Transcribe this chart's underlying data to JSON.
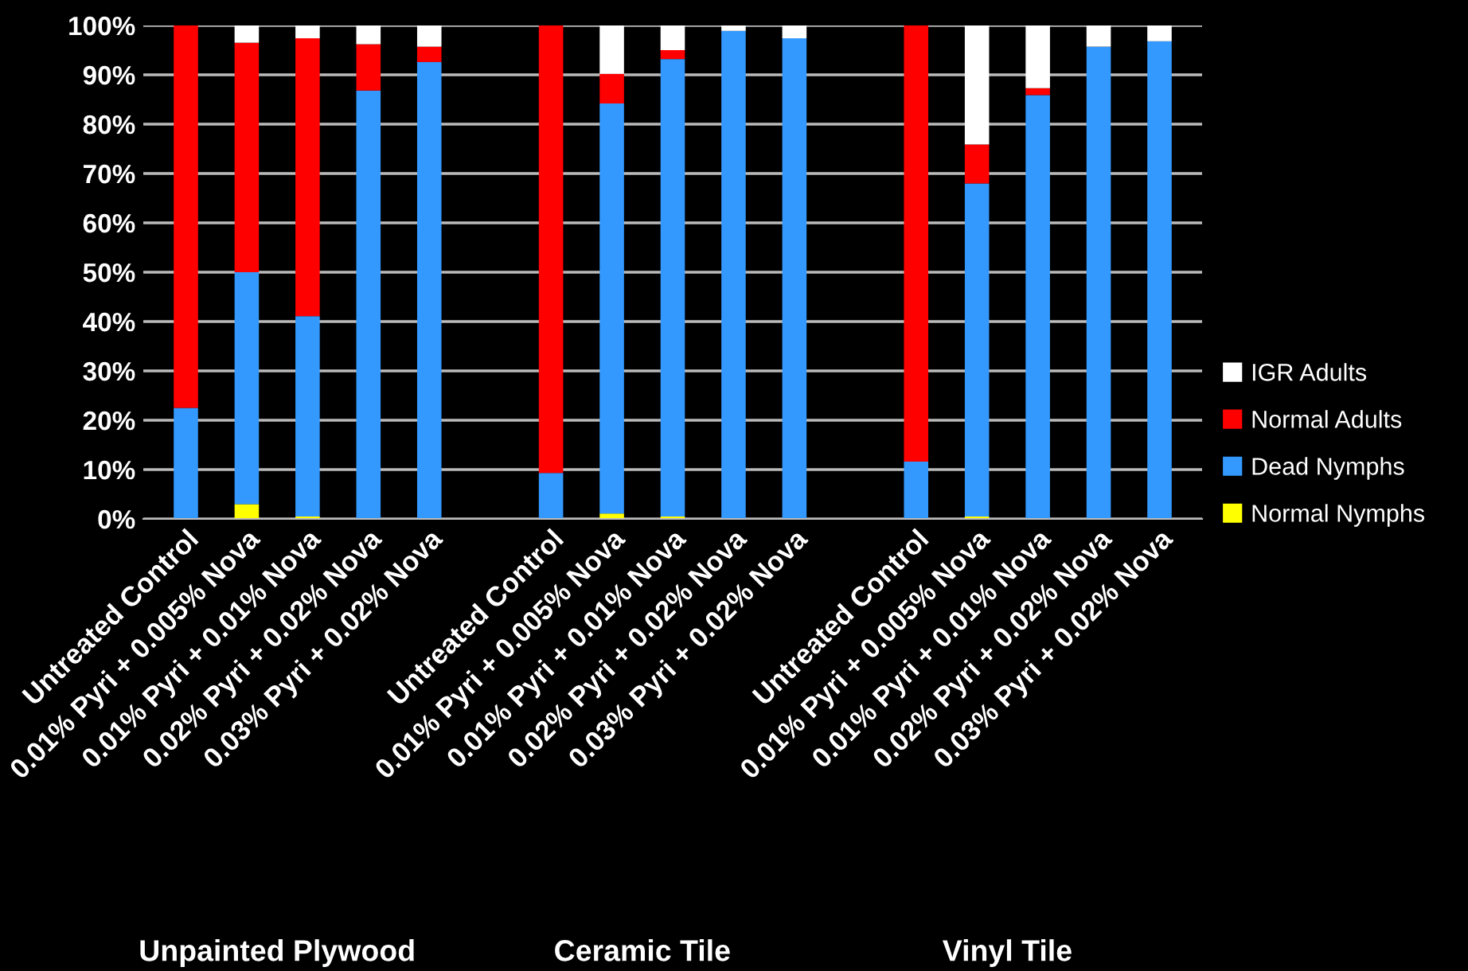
{
  "chart_data": {
    "type": "bar",
    "stacked": true,
    "categories": [
      "Untreated Control",
      "0.01% Pyri + 0.005% Nova",
      "0.01% Pyri + 0.01% Nova",
      "0.02% Pyri + 0.02% Nova",
      "0.03% Pyri + 0.02% Nova",
      null,
      "Untreated Control",
      "0.01% Pyri + 0.005% Nova",
      "0.01% Pyri + 0.01% Nova",
      "0.02% Pyri + 0.02% Nova",
      "0.03% Pyri + 0.02% Nova",
      null,
      "Untreated Control",
      "0.01% Pyri + 0.005% Nova",
      "0.01% Pyri + 0.01% Nova",
      "0.02% Pyri + 0.02% Nova",
      "0.03% Pyri + 0.02% Nova"
    ],
    "series": [
      {
        "name": "Normal Nymphs",
        "color": "#ffff00",
        "values": [
          0,
          3.0,
          0.5,
          0,
          0,
          null,
          0,
          1.1,
          0.5,
          0,
          0,
          null,
          0,
          0.5,
          0,
          0,
          0
        ]
      },
      {
        "name": "Dead Nymphs",
        "color": "#3399ff",
        "values": [
          22.5,
          47.0,
          40.6,
          86.8,
          92.6,
          null,
          9.3,
          83.1,
          92.7,
          98.9,
          97.4,
          null,
          11.6,
          67.5,
          85.9,
          95.7,
          96.8
        ]
      },
      {
        "name": "Normal Adults",
        "color": "#ff0000",
        "values": [
          77.5,
          46.5,
          56.3,
          9.4,
          3.1,
          null,
          90.7,
          6.0,
          1.8,
          0,
          0,
          null,
          88.4,
          7.9,
          1.4,
          0,
          0
        ]
      },
      {
        "name": "IGR Adults",
        "color": "#ffffff",
        "values": [
          0,
          3.5,
          2.6,
          3.8,
          4.3,
          null,
          0,
          9.8,
          5.0,
          1.1,
          2.6,
          null,
          0,
          24.2,
          12.7,
          4.3,
          3.2
        ]
      }
    ],
    "ylim": [
      0,
      100
    ],
    "yticks": [
      {
        "value": 0,
        "label": "0%"
      },
      {
        "value": 10,
        "label": "10%"
      },
      {
        "value": 20,
        "label": "20%"
      },
      {
        "value": 30,
        "label": "30%"
      },
      {
        "value": 40,
        "label": "40%"
      },
      {
        "value": 50,
        "label": "50%"
      },
      {
        "value": 60,
        "label": "60%"
      },
      {
        "value": 70,
        "label": "70%"
      },
      {
        "value": 80,
        "label": "80%"
      },
      {
        "value": 90,
        "label": "90%"
      },
      {
        "value": 100,
        "label": "100%"
      }
    ],
    "grid": "y",
    "legend": "right",
    "annotations": [
      "Unpainted Plywood",
      "Ceramic Tile",
      "Vinyl Tile"
    ]
  }
}
